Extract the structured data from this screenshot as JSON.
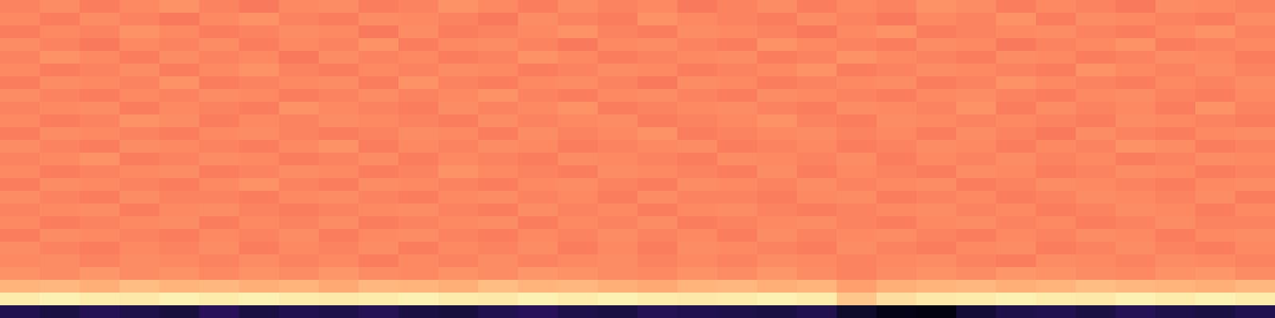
{
  "chart_data": {
    "type": "heatmap",
    "color": "magma",
    "color_range": [
      0,
      100
    ],
    "tick_labels": false,
    "cells": [
      [
        74,
        76,
        73,
        75,
        77,
        74,
        72,
        75,
        76,
        73,
        74,
        77,
        75,
        73,
        76,
        74,
        75,
        72,
        74,
        76,
        73,
        75,
        74,
        77,
        76,
        73,
        75,
        74,
        72,
        76,
        75,
        74
      ],
      [
        75,
        73,
        76,
        74,
        72,
        75,
        77,
        74,
        73,
        76,
        75,
        74,
        72,
        76,
        74,
        73,
        77,
        75,
        74,
        73,
        76,
        74,
        72,
        75,
        74,
        77,
        73,
        76,
        75,
        74,
        73,
        76
      ],
      [
        73,
        75,
        74,
        77,
        75,
        73,
        74,
        76,
        75,
        72,
        76,
        73,
        74,
        75,
        77,
        74,
        73,
        76,
        75,
        74,
        72,
        75,
        77,
        73,
        74,
        75,
        76,
        74,
        73,
        75,
        77,
        74
      ],
      [
        76,
        74,
        72,
        75,
        74,
        76,
        73,
        75,
        74,
        77,
        73,
        75,
        76,
        74,
        72,
        75,
        76,
        74,
        73,
        77,
        75,
        74,
        73,
        76,
        75,
        72,
        74,
        75,
        77,
        73,
        74,
        75
      ],
      [
        74,
        77,
        75,
        73,
        76,
        74,
        75,
        72,
        76,
        74,
        75,
        73,
        74,
        77,
        75,
        73,
        74,
        75,
        76,
        73,
        74,
        77,
        75,
        74,
        73,
        76,
        75,
        73,
        74,
        76,
        75,
        73
      ],
      [
        75,
        73,
        74,
        76,
        73,
        75,
        77,
        74,
        73,
        75,
        74,
        76,
        75,
        73,
        74,
        76,
        75,
        73,
        74,
        75,
        77,
        73,
        74,
        76,
        75,
        74,
        73,
        77,
        75,
        74,
        76,
        74
      ],
      [
        73,
        76,
        75,
        74,
        77,
        73,
        74,
        75,
        76,
        73,
        77,
        74,
        73,
        75,
        76,
        74,
        72,
        76,
        75,
        73,
        74,
        75,
        76,
        73,
        74,
        77,
        75,
        74,
        73,
        75,
        74,
        76
      ],
      [
        76,
        74,
        73,
        75,
        74,
        76,
        75,
        73,
        74,
        76,
        74,
        75,
        77,
        74,
        73,
        75,
        76,
        74,
        73,
        76,
        75,
        74,
        73,
        75,
        76,
        74,
        73,
        75,
        76,
        74,
        73,
        75
      ],
      [
        74,
        75,
        76,
        73,
        75,
        74,
        73,
        77,
        75,
        74,
        73,
        76,
        74,
        75,
        77,
        73,
        74,
        75,
        76,
        74,
        73,
        76,
        75,
        74,
        77,
        73,
        76,
        74,
        75,
        73,
        77,
        74
      ],
      [
        75,
        73,
        74,
        77,
        76,
        73,
        75,
        74,
        76,
        75,
        74,
        73,
        76,
        74,
        75,
        76,
        73,
        74,
        75,
        77,
        74,
        73,
        76,
        75,
        74,
        75,
        74,
        73,
        76,
        75,
        74,
        73
      ],
      [
        73,
        76,
        75,
        74,
        73,
        75,
        76,
        74,
        73,
        74,
        76,
        75,
        73,
        76,
        74,
        75,
        77,
        73,
        74,
        75,
        76,
        74,
        75,
        73,
        76,
        74,
        72,
        76,
        74,
        73,
        75,
        76
      ],
      [
        76,
        74,
        73,
        76,
        75,
        74,
        73,
        75,
        77,
        73,
        75,
        74,
        76,
        75,
        73,
        74,
        75,
        76,
        73,
        74,
        75,
        73,
        74,
        76,
        75,
        73,
        75,
        74,
        77,
        76,
        73,
        74
      ],
      [
        74,
        75,
        77,
        73,
        74,
        76,
        75,
        73,
        74,
        76,
        73,
        75,
        74,
        73,
        76,
        75,
        74,
        73,
        76,
        75,
        74,
        76,
        73,
        75,
        74,
        76,
        74,
        75,
        73,
        74,
        76,
        75
      ],
      [
        75,
        73,
        74,
        75,
        76,
        73,
        74,
        76,
        75,
        73,
        74,
        77,
        75,
        74,
        73,
        76,
        75,
        74,
        73,
        76,
        73,
        75,
        74,
        73,
        76,
        75,
        73,
        74,
        76,
        75,
        73,
        74
      ],
      [
        73,
        76,
        75,
        74,
        73,
        75,
        77,
        74,
        73,
        76,
        75,
        74,
        73,
        75,
        76,
        74,
        73,
        76,
        75,
        74,
        76,
        74,
        75,
        76,
        73,
        74,
        76,
        75,
        74,
        73,
        75,
        76
      ],
      [
        76,
        74,
        73,
        76,
        74,
        74,
        73,
        75,
        76,
        74,
        73,
        75,
        76,
        74,
        75,
        73,
        76,
        74,
        74,
        73,
        75,
        76,
        73,
        74,
        75,
        73,
        74,
        76,
        75,
        74,
        76,
        73
      ],
      [
        74,
        75,
        76,
        73,
        75,
        76,
        74,
        73,
        74,
        75,
        76,
        74,
        73,
        76,
        74,
        75,
        73,
        75,
        76,
        74,
        73,
        74,
        75,
        76,
        74,
        75,
        73,
        74,
        76,
        75,
        73,
        75
      ],
      [
        75,
        73,
        74,
        75,
        76,
        73,
        75,
        74,
        76,
        73,
        74,
        75,
        76,
        73,
        75,
        74,
        76,
        73,
        74,
        75,
        76,
        74,
        73,
        75,
        76,
        74,
        75,
        73,
        74,
        76,
        74,
        74
      ],
      [
        73,
        76,
        75,
        74,
        73,
        75,
        74,
        76,
        73,
        75,
        76,
        74,
        73,
        75,
        74,
        76,
        74,
        75,
        73,
        76,
        74,
        75,
        76,
        74,
        73,
        75,
        74,
        76,
        75,
        73,
        75,
        76
      ],
      [
        76,
        74,
        73,
        75,
        74,
        76,
        73,
        75,
        74,
        76,
        73,
        75,
        74,
        76,
        73,
        75,
        73,
        76,
        75,
        74,
        73,
        76,
        74,
        73,
        75,
        76,
        73,
        74,
        76,
        74,
        73,
        75
      ],
      [
        75,
        76,
        74,
        76,
        75,
        74,
        76,
        74,
        75,
        73,
        75,
        74,
        76,
        74,
        75,
        76,
        74,
        75,
        74,
        76,
        75,
        74,
        75,
        76,
        74,
        73,
        76,
        75,
        74,
        76,
        75,
        74
      ],
      [
        77,
        76,
        78,
        76,
        77,
        75,
        77,
        76,
        78,
        76,
        75,
        77,
        76,
        78,
        77,
        76,
        75,
        77,
        76,
        78,
        76,
        74,
        76,
        77,
        76,
        78,
        77,
        76,
        75,
        77,
        78,
        76
      ],
      [
        84,
        85,
        83,
        86,
        84,
        85,
        83,
        84,
        82,
        85,
        84,
        83,
        86,
        84,
        85,
        83,
        82,
        84,
        85,
        83,
        84,
        80,
        83,
        84,
        85,
        83,
        84,
        86,
        85,
        84,
        83,
        85
      ],
      [
        96,
        97,
        96,
        95,
        97,
        96,
        97,
        96,
        95,
        96,
        97,
        96,
        95,
        97,
        96,
        97,
        96,
        95,
        96,
        97,
        96,
        88,
        93,
        95,
        96,
        97,
        96,
        95,
        97,
        96,
        97,
        96
      ],
      [
        14,
        12,
        15,
        13,
        11,
        16,
        12,
        14,
        13,
        15,
        12,
        11,
        14,
        16,
        13,
        12,
        15,
        14,
        13,
        12,
        14,
        8,
        4,
        3,
        10,
        13,
        14,
        12,
        15,
        13,
        12,
        14
      ]
    ]
  }
}
